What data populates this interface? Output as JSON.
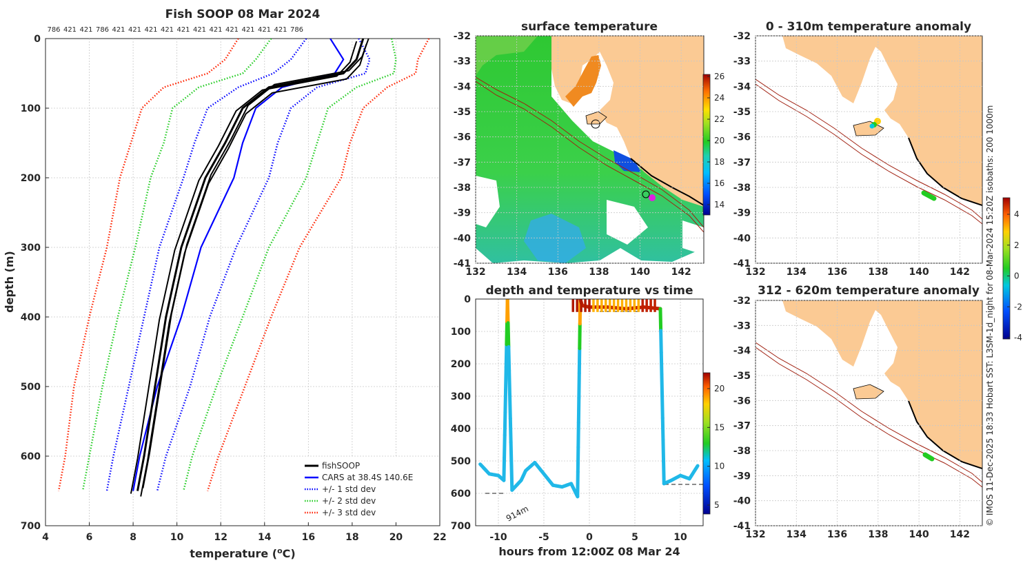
{
  "profile": {
    "title": "Fish SOOP 08 Mar 2024",
    "xlabel": "temperature (",
    "xlabel_sup": "o",
    "xlabel_end": "C)",
    "ylabel": "depth (m)",
    "top_labels": [
      "786",
      "421",
      "421",
      "786",
      "421",
      "421",
      "421",
      "421",
      "421",
      "421",
      "421",
      "421",
      "421",
      "421",
      "421",
      "786"
    ],
    "legend": [
      "fishSOOP",
      "CARS at 38.4S 140.6E",
      "+/- 1 std dev",
      "+/- 2 std dev",
      "+/- 3 std dev"
    ]
  },
  "surface": {
    "title": "surface temperature",
    "colorbar_ticks": [
      "26",
      "24",
      "22",
      "20",
      "18",
      "16",
      "14"
    ]
  },
  "timeseries": {
    "title": "depth and temperature vs time",
    "xlabel": "hours from 12:00Z 08 Mar 24",
    "bottom_label": "914m",
    "colorbar_ticks": [
      "20",
      "15",
      "10",
      "5"
    ]
  },
  "anom1": {
    "title": "0 - 310m temperature anomaly"
  },
  "anom2": {
    "title": "312 - 620m temperature anomaly"
  },
  "anom_colorbar_ticks": [
    "4",
    "2",
    "0",
    "-2",
    "-4"
  ],
  "side_note": "© IMOS 11-Dec-2025 18:33 Hobart SST: L3SM-1d_night for 08-Mar-2024 15:20Z isobaths: 200  1000m",
  "map_axes": {
    "x_ticks": [
      "132",
      "134",
      "136",
      "138",
      "140",
      "142"
    ],
    "y_ticks": [
      "-32",
      "-33",
      "-34",
      "-35",
      "-36",
      "-37",
      "-38",
      "-39",
      "-40",
      "-41"
    ]
  },
  "chart_data": [
    {
      "type": "line",
      "title": "Fish SOOP 08 Mar 2024",
      "xlabel": "temperature (oC)",
      "ylabel": "depth (m)",
      "xlim": [
        4,
        22
      ],
      "ylim": [
        700,
        0
      ],
      "x_ticks": [
        "4",
        "6",
        "8",
        "10",
        "12",
        "14",
        "16",
        "18",
        "20",
        "22"
      ],
      "y_ticks": [
        "0",
        "100",
        "200",
        "300",
        "400",
        "500",
        "600",
        "700"
      ],
      "depth": [
        0,
        30,
        50,
        70,
        100,
        150,
        200,
        300,
        400,
        500,
        600,
        650
      ],
      "series": [
        {
          "name": "CARS at 38.4S 140.6E",
          "color": "#0000ff",
          "style": "solid",
          "values": [
            17.0,
            17.6,
            17.2,
            14.8,
            13.6,
            13.0,
            12.6,
            11.1,
            10.2,
            9.1,
            8.3,
            8.0
          ]
        },
        {
          "name": "+/- 1 std dev low",
          "color": "#0000ff",
          "style": "dotted",
          "values": [
            15.9,
            15.2,
            14.4,
            12.8,
            11.4,
            10.8,
            10.3,
            9.2,
            8.5,
            7.8,
            7.1,
            6.8
          ]
        },
        {
          "name": "+/- 1 std dev high",
          "color": "#0000ff",
          "style": "dotted",
          "values": [
            18.3,
            18.8,
            18.6,
            16.4,
            15.2,
            14.6,
            14.2,
            12.7,
            11.5,
            10.6,
            9.5,
            9.1
          ]
        },
        {
          "name": "+/- 2 std dev low",
          "color": "#22cc22",
          "style": "dotted",
          "values": [
            14.3,
            13.6,
            13.0,
            11.0,
            9.8,
            9.4,
            8.8,
            8.1,
            7.3,
            6.6,
            6.0,
            5.7
          ]
        },
        {
          "name": "+/- 2 std dev high",
          "color": "#22cc22",
          "style": "dotted",
          "values": [
            19.8,
            20.0,
            19.9,
            18.2,
            16.9,
            16.4,
            15.9,
            14.2,
            13.0,
            11.8,
            10.7,
            10.3
          ]
        },
        {
          "name": "+/- 3 std dev low",
          "color": "#ff2200",
          "style": "dotted",
          "values": [
            12.8,
            12.2,
            11.4,
            9.4,
            8.4,
            7.9,
            7.4,
            6.8,
            6.0,
            5.3,
            4.9,
            4.6
          ]
        },
        {
          "name": "+/- 3 std dev high",
          "color": "#ff2200",
          "style": "dotted",
          "values": [
            21.5,
            21.0,
            20.9,
            19.6,
            18.5,
            17.9,
            17.5,
            15.6,
            14.3,
            13.1,
            11.9,
            11.4
          ]
        },
        {
          "name": "fishSOOP",
          "color": "#000000",
          "style": "solid",
          "values": [
            18.5,
            18.2,
            17.6,
            14.2,
            13.0,
            12.2,
            11.3,
            10.2,
            9.5,
            9.0,
            8.5,
            8.2
          ]
        }
      ]
    },
    {
      "type": "line",
      "title": "depth and temperature vs time",
      "xlabel": "hours from 12:00Z 08 Mar 24",
      "xlim": [
        -12.5,
        12.5
      ],
      "ylim": [
        700,
        0
      ],
      "x_ticks": [
        "-10",
        "-5",
        "0",
        "5",
        "10"
      ],
      "y_ticks": [
        "0",
        "100",
        "200",
        "300",
        "400",
        "500",
        "600",
        "700"
      ],
      "x": [
        -12,
        -11,
        -10,
        -9.4,
        -9,
        -8.5,
        -7.5,
        -7,
        -6,
        -5,
        -4,
        -3,
        -2,
        -1.3,
        -1.0,
        -0.8,
        0,
        2,
        4,
        6,
        7.8,
        8.2,
        9,
        10,
        11,
        11.9
      ],
      "values": [
        510,
        540,
        545,
        560,
        0,
        590,
        560,
        530,
        505,
        540,
        575,
        580,
        570,
        610,
        0,
        20,
        25,
        25,
        30,
        25,
        30,
        570,
        560,
        545,
        555,
        515
      ]
    }
  ]
}
